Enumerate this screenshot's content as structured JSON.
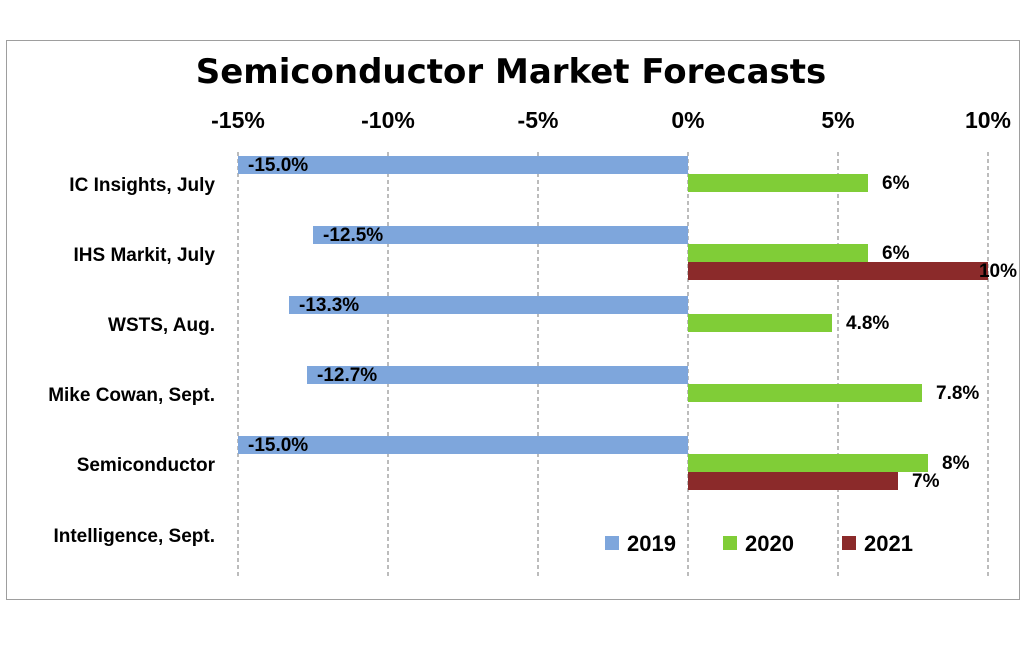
{
  "chart_data": {
    "type": "bar",
    "orientation": "horizontal",
    "title": "Semiconductor Market Forecasts",
    "x_axis": {
      "position": "top",
      "min": -15,
      "max": 10,
      "ticks": [
        -15,
        -10,
        -5,
        0,
        5,
        10
      ],
      "tick_labels": [
        "-15%",
        "-10%",
        "-5%",
        "0%",
        "5%",
        "10%"
      ],
      "gridlines": "dashed"
    },
    "categories": [
      "IC Insights, July",
      "IHS Markit, July",
      "WSTS, Aug.",
      "Mike Cowan, Sept.",
      "Semiconductor Intelligence, Sept."
    ],
    "category_label_lines": [
      [
        "IC Insights, July"
      ],
      [
        "IHS Markit, July"
      ],
      [
        "WSTS, Aug."
      ],
      [
        "Mike Cowan, Sept."
      ],
      [
        "Semiconductor",
        "Intelligence, Sept."
      ]
    ],
    "series": [
      {
        "name": "2019",
        "color": "#7ea6dc",
        "values": [
          -15.0,
          -12.5,
          -13.3,
          -12.7,
          -15.0
        ],
        "labels": [
          "-15.0%",
          "-12.5%",
          "-13.3%",
          "-12.7%",
          "-15.0%"
        ]
      },
      {
        "name": "2020",
        "color": "#80cd37",
        "values": [
          6,
          6,
          4.8,
          7.8,
          8
        ],
        "labels": [
          "6%",
          "6%",
          "4.8%",
          "7.8%",
          "8%"
        ]
      },
      {
        "name": "2021",
        "color": "#8b2a2a",
        "values": [
          null,
          10,
          null,
          null,
          7
        ],
        "labels": [
          null,
          "10%",
          null,
          null,
          "7%"
        ]
      }
    ],
    "legend": {
      "placement": "bottom-right",
      "entries": [
        "2019",
        "2020",
        "2021"
      ]
    }
  }
}
